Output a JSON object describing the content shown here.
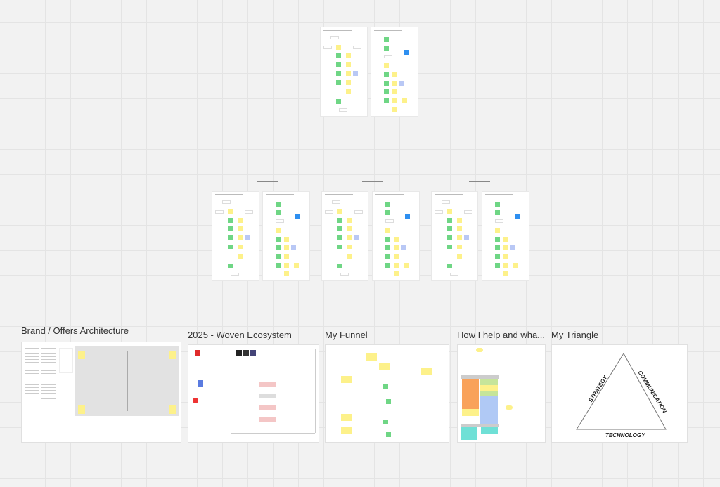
{
  "frames": [
    {
      "title": "Brand / Offers Architecture"
    },
    {
      "title": "2025 - Woven Ecosystem"
    },
    {
      "title": "My Funnel"
    },
    {
      "title": "How I help and wha..."
    },
    {
      "title": "My Triangle"
    }
  ],
  "triangle": {
    "left": "Strategy",
    "right": "Communication",
    "bottom": "Technology"
  },
  "colors": {
    "canvas": "#f2f2f2",
    "sticky_yellow": "#fdf18a",
    "sticky_green": "#6fd685",
    "sticky_blue": "#2e8ff0",
    "orange": "#f9a25a",
    "teal": "#6fe0d6"
  }
}
